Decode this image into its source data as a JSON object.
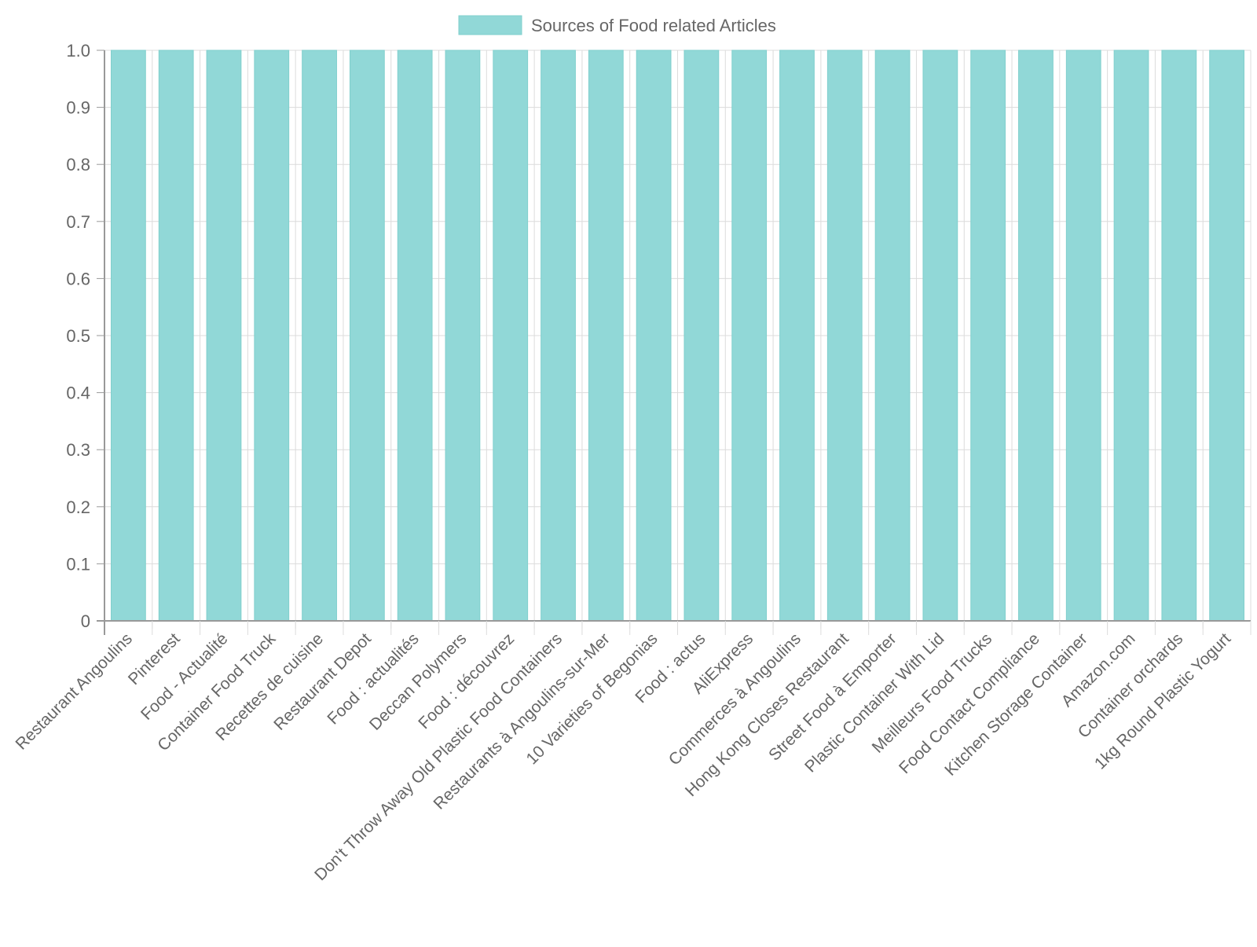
{
  "chart_data": {
    "type": "bar",
    "legend": {
      "label": "Sources of Food related Articles",
      "position": "top-center"
    },
    "categories": [
      "Restaurant Angoulins",
      "Pinterest",
      "Food - Actualité",
      "Container Food Truck",
      "Recettes de cuisine",
      "Restaurant Depot",
      "Food : actualités",
      "Deccan Polymers",
      "Food : découvrez",
      "Don't Throw Away Old Plastic Food Containers",
      "Restaurants à Angoulins-sur-Mer",
      "10 Varieties of Begonias",
      "Food : actus",
      "AliExpress",
      "Commerces à Angoulins",
      "Hong Kong Closes Restaurant",
      "Street Food à Emporter",
      "Plastic Container With Lid",
      "Meilleurs Food Trucks",
      "Food Contact Compliance",
      "Kitchen Storage Container",
      "Amazon.com",
      "Container orchards",
      "1kg Round Plastic Yogurt"
    ],
    "series": [
      {
        "name": "Sources of Food related Articles",
        "values": [
          1,
          1,
          1,
          1,
          1,
          1,
          1,
          1,
          1,
          1,
          1,
          1,
          1,
          1,
          1,
          1,
          1,
          1,
          1,
          1,
          1,
          1,
          1,
          1
        ]
      }
    ],
    "yticks": [
      "0",
      "0.1",
      "0.2",
      "0.3",
      "0.4",
      "0.5",
      "0.6",
      "0.7",
      "0.8",
      "0.9",
      "1.0"
    ],
    "ylim": [
      0,
      1
    ],
    "grid": true,
    "colors": {
      "bar_fill": "#91d8d7",
      "bar_stroke": "#80cfcd",
      "grid": "#dcdcdc",
      "axis": "#999999",
      "text": "#666666"
    }
  }
}
